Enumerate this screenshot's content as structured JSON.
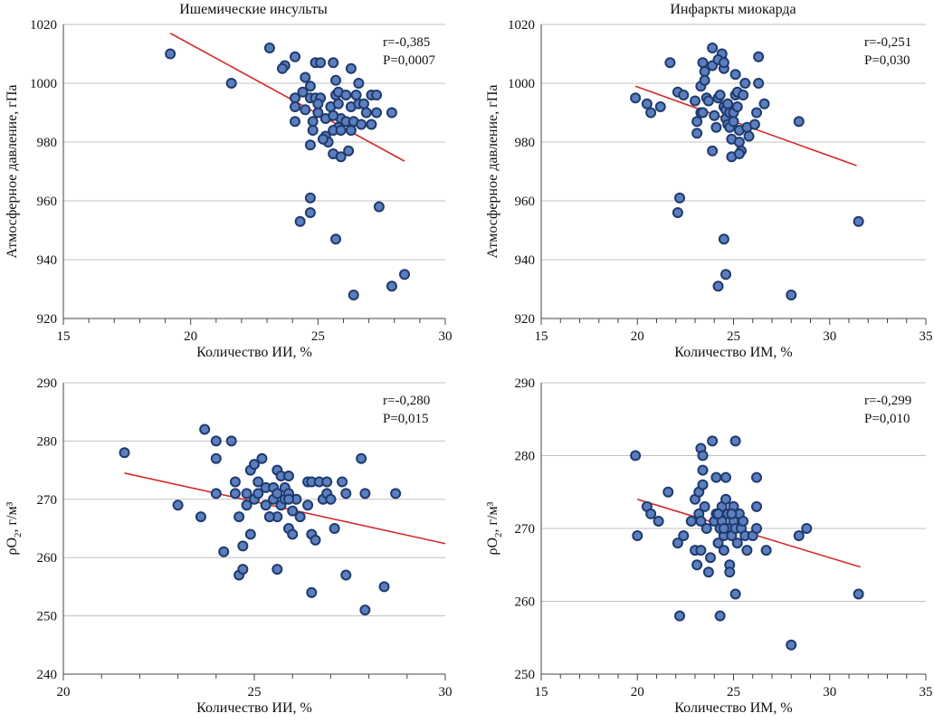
{
  "chart_data": [
    {
      "type": "scatter",
      "title": "Ишемические инсульты",
      "xlabel": "Количество ИИ, %",
      "ylabel": "Атмосферное давление, гПа",
      "ylabel_sub": "",
      "xlim": [
        15,
        30
      ],
      "ylim": [
        920,
        1020
      ],
      "xticks": [
        15,
        20,
        25,
        30
      ],
      "yticks": [
        920,
        940,
        960,
        980,
        1000,
        1020
      ],
      "minor_x_step": 1,
      "grid": true,
      "annotation": [
        "r=-0,385",
        "P=0,0007"
      ],
      "trend": [
        [
          19.2,
          1017
        ],
        [
          28.4,
          973.5
        ]
      ],
      "points": [
        [
          19.2,
          1010
        ],
        [
          21.6,
          1000
        ],
        [
          23.1,
          1012
        ],
        [
          23.7,
          1006
        ],
        [
          24.1,
          1009
        ],
        [
          23.6,
          1005
        ],
        [
          24.1,
          995
        ],
        [
          24.1,
          992
        ],
        [
          24.4,
          997
        ],
        [
          24.5,
          1002
        ],
        [
          24.1,
          987
        ],
        [
          24.7,
          999
        ],
        [
          24.9,
          1007
        ],
        [
          25.1,
          1007
        ],
        [
          25.6,
          1007
        ],
        [
          26.3,
          1005
        ],
        [
          24.5,
          991
        ],
        [
          24.7,
          995
        ],
        [
          24.9,
          995
        ],
        [
          25.0,
          990
        ],
        [
          25.1,
          995
        ],
        [
          25.3,
          988
        ],
        [
          25.5,
          992
        ],
        [
          25.7,
          996
        ],
        [
          25.8,
          997
        ],
        [
          25.8,
          993
        ],
        [
          25.9,
          988
        ],
        [
          26.1,
          996
        ],
        [
          26.3,
          992
        ],
        [
          26.5,
          996
        ],
        [
          26.6,
          993
        ],
        [
          26.8,
          993
        ],
        [
          26.9,
          990
        ],
        [
          27.1,
          996
        ],
        [
          27.3,
          996
        ],
        [
          27.3,
          990
        ],
        [
          27.9,
          990
        ],
        [
          26.6,
          1000
        ],
        [
          25.7,
          1001
        ],
        [
          25.8,
          985
        ],
        [
          26.1,
          987
        ],
        [
          25.6,
          984
        ],
        [
          25.3,
          982
        ],
        [
          25.4,
          980
        ],
        [
          24.8,
          987
        ],
        [
          24.8,
          984
        ],
        [
          24.7,
          979
        ],
        [
          26.4,
          987
        ],
        [
          26.7,
          986
        ],
        [
          27.1,
          986
        ],
        [
          26.3,
          984
        ],
        [
          25.6,
          976
        ],
        [
          25.9,
          975
        ],
        [
          26.2,
          977
        ],
        [
          24.7,
          961
        ],
        [
          24.7,
          956
        ],
        [
          24.3,
          953
        ],
        [
          25.7,
          947
        ],
        [
          27.4,
          958
        ],
        [
          27.9,
          931
        ],
        [
          28.4,
          935
        ],
        [
          26.4,
          928
        ],
        [
          25.2,
          981
        ],
        [
          25.6,
          989
        ],
        [
          25.0,
          993
        ],
        [
          25.9,
          984
        ]
      ]
    },
    {
      "type": "scatter",
      "title": "Инфаркты миокарда",
      "xlabel": "Количество ИМ, %",
      "ylabel": "Атмосферное давление, гПа",
      "ylabel_sub": "",
      "xlim": [
        15,
        35
      ],
      "ylim": [
        920,
        1020
      ],
      "xticks": [
        15,
        20,
        25,
        30,
        35
      ],
      "yticks": [
        920,
        940,
        960,
        980,
        1000,
        1020
      ],
      "minor_x_step": 1,
      "grid": true,
      "annotation": [
        "r=-0,251",
        "P=0,030"
      ],
      "trend": [
        [
          19.9,
          999
        ],
        [
          31.4,
          972
        ]
      ],
      "points": [
        [
          19.9,
          995
        ],
        [
          20.5,
          993
        ],
        [
          20.7,
          990
        ],
        [
          21.2,
          992
        ],
        [
          21.7,
          1007
        ],
        [
          22.1,
          997
        ],
        [
          22.4,
          996
        ],
        [
          23.0,
          994
        ],
        [
          23.1,
          987
        ],
        [
          23.1,
          983
        ],
        [
          23.3,
          990
        ],
        [
          23.3,
          999
        ],
        [
          23.4,
          1007
        ],
        [
          23.5,
          1004
        ],
        [
          23.5,
          1001
        ],
        [
          23.6,
          995
        ],
        [
          23.7,
          994
        ],
        [
          23.9,
          1012
        ],
        [
          23.9,
          1006
        ],
        [
          24.0,
          989
        ],
        [
          24.1,
          985
        ],
        [
          24.2,
          995
        ],
        [
          24.3,
          996
        ],
        [
          24.4,
          1008
        ],
        [
          24.4,
          1010
        ],
        [
          24.5,
          1005
        ],
        [
          24.5,
          992
        ],
        [
          24.6,
          991
        ],
        [
          24.6,
          988
        ],
        [
          24.7,
          986
        ],
        [
          24.7,
          993
        ],
        [
          24.8,
          990
        ],
        [
          24.8,
          985
        ],
        [
          24.9,
          981
        ],
        [
          25.0,
          990
        ],
        [
          25.0,
          987
        ],
        [
          25.1,
          996
        ],
        [
          25.1,
          1003
        ],
        [
          25.2,
          997
        ],
        [
          25.2,
          992
        ],
        [
          25.3,
          984
        ],
        [
          25.3,
          980
        ],
        [
          25.4,
          977
        ],
        [
          25.5,
          996
        ],
        [
          25.6,
          1000
        ],
        [
          25.7,
          985
        ],
        [
          25.8,
          982
        ],
        [
          26.1,
          986
        ],
        [
          26.2,
          990
        ],
        [
          26.3,
          1009
        ],
        [
          26.3,
          1000
        ],
        [
          26.6,
          993
        ],
        [
          24.2,
          1008
        ],
        [
          24.5,
          1007
        ],
        [
          24.9,
          975
        ],
        [
          25.3,
          976
        ],
        [
          23.9,
          977
        ],
        [
          23.4,
          990
        ],
        [
          22.2,
          961
        ],
        [
          22.1,
          956
        ],
        [
          24.2,
          931
        ],
        [
          24.6,
          935
        ],
        [
          24.5,
          947
        ],
        [
          28.0,
          928
        ],
        [
          28.4,
          987
        ],
        [
          31.5,
          953
        ]
      ]
    },
    {
      "type": "scatter",
      "title": "",
      "xlabel": "Количество ИИ, %",
      "ylabel": "ρO",
      "ylabel_sub": "2",
      "ylabel_rest": ", г/м³",
      "xlim": [
        20,
        30
      ],
      "ylim": [
        240,
        290
      ],
      "xticks": [
        20,
        25,
        30
      ],
      "yticks": [
        240,
        250,
        260,
        270,
        280,
        290
      ],
      "minor_x_step": 1,
      "grid": true,
      "annotation": [
        "r=-0,280",
        "P=0,015"
      ],
      "trend": [
        [
          21.6,
          274.5
        ],
        [
          30,
          262.4
        ]
      ],
      "points": [
        [
          21.6,
          278
        ],
        [
          23.0,
          269
        ],
        [
          23.6,
          267
        ],
        [
          23.7,
          282
        ],
        [
          24.0,
          280
        ],
        [
          24.0,
          277
        ],
        [
          24.0,
          271
        ],
        [
          24.4,
          280
        ],
        [
          24.2,
          261
        ],
        [
          24.5,
          273
        ],
        [
          24.5,
          271
        ],
        [
          24.6,
          267
        ],
        [
          24.6,
          257
        ],
        [
          24.7,
          258
        ],
        [
          24.7,
          262
        ],
        [
          24.8,
          271
        ],
        [
          24.8,
          269
        ],
        [
          24.9,
          275
        ],
        [
          24.9,
          264
        ],
        [
          25.0,
          270
        ],
        [
          25.0,
          276
        ],
        [
          25.1,
          273
        ],
        [
          25.1,
          271
        ],
        [
          25.2,
          277
        ],
        [
          25.3,
          272
        ],
        [
          25.3,
          269
        ],
        [
          25.4,
          267
        ],
        [
          25.5,
          270
        ],
        [
          25.5,
          272
        ],
        [
          25.6,
          275
        ],
        [
          25.6,
          271
        ],
        [
          25.6,
          267
        ],
        [
          25.7,
          274
        ],
        [
          25.7,
          269
        ],
        [
          25.8,
          270
        ],
        [
          25.8,
          272
        ],
        [
          25.9,
          274
        ],
        [
          25.9,
          271
        ],
        [
          25.9,
          265
        ],
        [
          26.0,
          268
        ],
        [
          26.0,
          264
        ],
        [
          26.1,
          270
        ],
        [
          26.2,
          267
        ],
        [
          26.4,
          273
        ],
        [
          26.5,
          273
        ],
        [
          26.5,
          264
        ],
        [
          26.5,
          254
        ],
        [
          26.6,
          263
        ],
        [
          26.7,
          273
        ],
        [
          26.8,
          270
        ],
        [
          26.9,
          273
        ],
        [
          26.9,
          271
        ],
        [
          27.0,
          270
        ],
        [
          27.1,
          265
        ],
        [
          27.3,
          273
        ],
        [
          27.4,
          271
        ],
        [
          27.4,
          257
        ],
        [
          27.8,
          277
        ],
        [
          27.9,
          271
        ],
        [
          27.9,
          251
        ],
        [
          28.4,
          255
        ],
        [
          28.7,
          271
        ],
        [
          25.6,
          258
        ],
        [
          26.4,
          269
        ],
        [
          25.4,
          267
        ],
        [
          25.9,
          270
        ]
      ]
    },
    {
      "type": "scatter",
      "title": "",
      "xlabel": "Количество ИМ, %",
      "ylabel": "ρO",
      "ylabel_sub": "2",
      "ylabel_rest": ", г/м³",
      "xlim": [
        15,
        35
      ],
      "ylim": [
        250,
        290
      ],
      "xticks": [
        15,
        20,
        25,
        30,
        35
      ],
      "yticks": [
        250,
        260,
        270,
        280,
        290
      ],
      "minor_x_step": 1,
      "grid": true,
      "annotation": [
        "r=-0,299",
        "P=0,010"
      ],
      "trend": [
        [
          20.0,
          274
        ],
        [
          31.6,
          264.7
        ]
      ],
      "points": [
        [
          19.9,
          280
        ],
        [
          20.0,
          269
        ],
        [
          20.5,
          273
        ],
        [
          20.7,
          272
        ],
        [
          21.1,
          271
        ],
        [
          21.6,
          275
        ],
        [
          22.1,
          268
        ],
        [
          22.2,
          258
        ],
        [
          22.4,
          269
        ],
        [
          22.8,
          271
        ],
        [
          23.0,
          274
        ],
        [
          23.0,
          267
        ],
        [
          23.1,
          265
        ],
        [
          23.2,
          275
        ],
        [
          23.2,
          272
        ],
        [
          23.3,
          271
        ],
        [
          23.3,
          281
        ],
        [
          23.4,
          280
        ],
        [
          23.4,
          278
        ],
        [
          23.4,
          276
        ],
        [
          23.5,
          273
        ],
        [
          23.6,
          270
        ],
        [
          23.7,
          264
        ],
        [
          23.8,
          266
        ],
        [
          23.9,
          282
        ],
        [
          24.0,
          271
        ],
        [
          24.1,
          272
        ],
        [
          24.1,
          277
        ],
        [
          24.2,
          268
        ],
        [
          24.3,
          270
        ],
        [
          24.3,
          258
        ],
        [
          24.4,
          273
        ],
        [
          24.4,
          271
        ],
        [
          24.5,
          269
        ],
        [
          24.5,
          267
        ],
        [
          24.6,
          274
        ],
        [
          24.6,
          277
        ],
        [
          24.7,
          270
        ],
        [
          24.7,
          272
        ],
        [
          24.8,
          265
        ],
        [
          24.8,
          264
        ],
        [
          24.9,
          269
        ],
        [
          25.0,
          273
        ],
        [
          25.0,
          271
        ],
        [
          25.1,
          282
        ],
        [
          25.1,
          270
        ],
        [
          25.1,
          261
        ],
        [
          25.2,
          268
        ],
        [
          25.3,
          272
        ],
        [
          25.4,
          270
        ],
        [
          25.6,
          269
        ],
        [
          25.7,
          267
        ],
        [
          26.0,
          269
        ],
        [
          26.2,
          277
        ],
        [
          26.2,
          273
        ],
        [
          26.2,
          270
        ],
        [
          26.7,
          267
        ],
        [
          28.0,
          254
        ],
        [
          28.4,
          269
        ],
        [
          28.8,
          270
        ],
        [
          31.5,
          261
        ],
        [
          24.2,
          272
        ],
        [
          24.5,
          270
        ],
        [
          23.3,
          267
        ],
        [
          25.5,
          271
        ],
        [
          24.9,
          272
        ]
      ]
    }
  ]
}
